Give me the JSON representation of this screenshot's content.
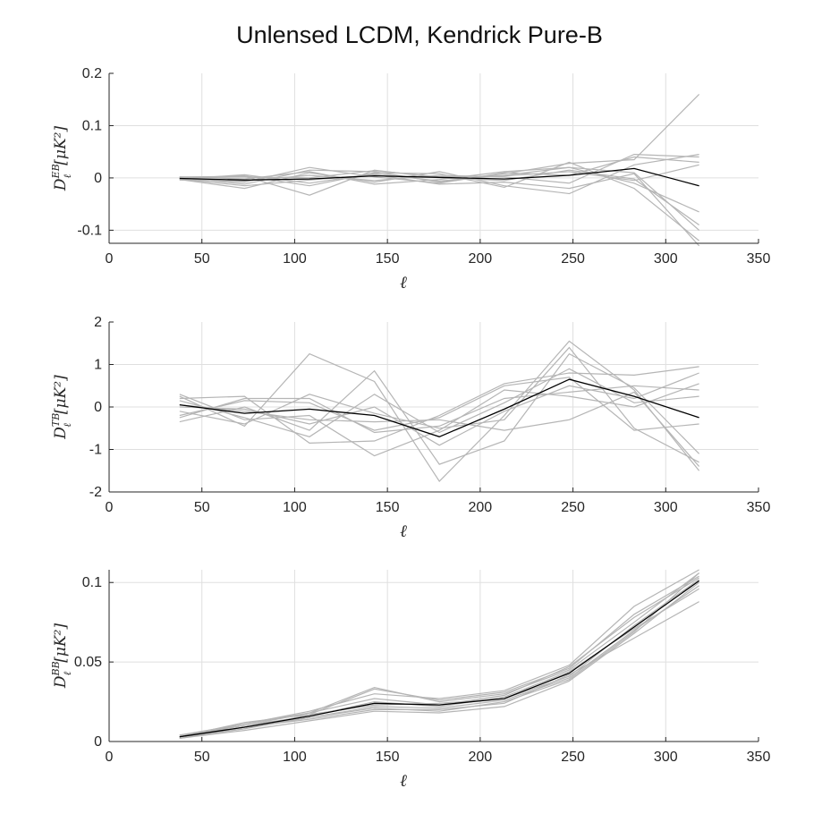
{
  "title": "Unlensed LCDM, Kendrick Pure-B",
  "colors": {
    "realizations": "#b5b5b5",
    "mean": "#000000",
    "grid": "#dfdfdf",
    "axes": "#262626"
  },
  "chart_data": [
    {
      "type": "line",
      "xlabel": "ℓ",
      "ylabel": {
        "base": "D",
        "sub": "ℓ",
        "sup": "EB",
        "unit": "[μK²]"
      },
      "xlim": [
        0,
        350
      ],
      "ylim": [
        -0.125,
        0.2
      ],
      "xticks": [
        0,
        50,
        100,
        150,
        200,
        250,
        300,
        350
      ],
      "yticks": [
        -0.1,
        0,
        0.1,
        0.2
      ],
      "ytick_labels": [
        "-0.1",
        "0",
        "0.1",
        "0.2"
      ],
      "grid": true,
      "x": [
        38,
        73,
        108,
        143,
        178,
        213,
        248,
        283,
        318
      ],
      "mean": [
        -0.001,
        -0.004,
        -0.002,
        0.004,
        0.001,
        -0.002,
        0.005,
        0.018,
        -0.015
      ],
      "realizations": [
        [
          -0.002,
          0.006,
          -0.01,
          0.008,
          -0.006,
          0.005,
          0.02,
          -0.01,
          -0.065
        ],
        [
          0.001,
          -0.012,
          0.015,
          0.012,
          -0.008,
          0.008,
          0.028,
          0.035,
          0.16
        ],
        [
          -0.003,
          -0.02,
          0.01,
          -0.008,
          0.012,
          -0.015,
          -0.03,
          0.025,
          0.045
        ],
        [
          0.002,
          0.003,
          -0.033,
          0.015,
          0.0,
          -0.005,
          0.015,
          -0.002,
          -0.09
        ],
        [
          -0.001,
          -0.008,
          0.02,
          0.002,
          -0.01,
          0.01,
          0.005,
          0.04,
          0.03
        ],
        [
          0.0,
          0.004,
          -0.015,
          0.01,
          0.008,
          -0.018,
          0.03,
          -0.02,
          -0.12
        ],
        [
          -0.004,
          -0.006,
          0.005,
          -0.005,
          0.005,
          0.002,
          -0.01,
          0.045,
          0.04
        ],
        [
          0.002,
          -0.002,
          0.012,
          -0.012,
          -0.003,
          0.012,
          0.02,
          0.01,
          -0.1
        ],
        [
          -0.002,
          -0.015,
          -0.004,
          0.006,
          -0.012,
          -0.008,
          -0.02,
          0.008,
          -0.13
        ],
        [
          0.001,
          0.002,
          0.0,
          0.014,
          0.002,
          0.004,
          0.012,
          -0.005,
          0.025
        ]
      ]
    },
    {
      "type": "line",
      "xlabel": "ℓ",
      "ylabel": {
        "base": "D",
        "sub": "ℓ",
        "sup": "TB",
        "unit": "[μK²]"
      },
      "xlim": [
        0,
        350
      ],
      "ylim": [
        -2,
        2
      ],
      "xticks": [
        0,
        50,
        100,
        150,
        200,
        250,
        300,
        350
      ],
      "yticks": [
        -2,
        -1,
        0,
        1,
        2
      ],
      "ytick_labels": [
        "-2",
        "-1",
        "0",
        "1",
        "2"
      ],
      "grid": true,
      "x": [
        38,
        73,
        108,
        143,
        178,
        213,
        248,
        283,
        318
      ],
      "mean": [
        0.05,
        -0.15,
        -0.05,
        -0.2,
        -0.7,
        -0.05,
        0.65,
        0.25,
        -0.25
      ],
      "realizations": [
        [
          0.25,
          -0.45,
          1.25,
          0.6,
          -1.75,
          -0.2,
          1.55,
          0.4,
          -1.5
        ],
        [
          -0.35,
          0.0,
          -0.55,
          0.85,
          -1.35,
          -0.8,
          1.25,
          0.45,
          -1.1
        ],
        [
          0.2,
          0.25,
          -0.85,
          -0.8,
          -0.2,
          0.55,
          0.8,
          0.75,
          0.95
        ],
        [
          -0.1,
          -0.4,
          0.3,
          -0.15,
          -0.5,
          -0.3,
          1.4,
          -0.5,
          -1.3
        ],
        [
          0.3,
          -0.3,
          -0.2,
          -1.15,
          -0.55,
          0.4,
          0.25,
          0.0,
          0.55
        ],
        [
          0.0,
          -0.05,
          -0.4,
          0.0,
          -0.9,
          -0.1,
          0.5,
          0.2,
          0.8
        ],
        [
          -0.2,
          0.15,
          0.1,
          -0.55,
          -0.25,
          0.5,
          0.7,
          -0.55,
          -0.4
        ],
        [
          0.15,
          -0.25,
          -0.7,
          0.3,
          -0.6,
          0.1,
          0.9,
          0.1,
          0.25
        ],
        [
          0.05,
          -0.1,
          -0.3,
          -0.35,
          -0.3,
          -0.55,
          -0.3,
          0.35,
          -1.4
        ],
        [
          -0.25,
          0.2,
          0.2,
          -0.6,
          -0.45,
          0.2,
          0.35,
          0.5,
          0.4
        ]
      ]
    },
    {
      "type": "line",
      "xlabel": "ℓ",
      "ylabel": {
        "base": "D",
        "sub": "ℓ",
        "sup": "BB",
        "unit": "[μK²]"
      },
      "xlim": [
        0,
        350
      ],
      "ylim": [
        0,
        0.108
      ],
      "xticks": [
        0,
        50,
        100,
        150,
        200,
        250,
        300,
        350
      ],
      "yticks": [
        0,
        0.05,
        0.1
      ],
      "ytick_labels": [
        "0",
        "0.05",
        "0.1"
      ],
      "grid": true,
      "x": [
        38,
        73,
        108,
        143,
        178,
        213,
        248,
        283,
        318
      ],
      "mean": [
        0.003,
        0.009,
        0.016,
        0.024,
        0.023,
        0.027,
        0.043,
        0.072,
        0.101
      ],
      "realizations": [
        [
          0.003,
          0.01,
          0.018,
          0.034,
          0.025,
          0.03,
          0.045,
          0.075,
          0.106
        ],
        [
          0.002,
          0.008,
          0.015,
          0.022,
          0.021,
          0.026,
          0.04,
          0.07,
          0.098
        ],
        [
          0.004,
          0.011,
          0.019,
          0.03,
          0.027,
          0.032,
          0.048,
          0.085,
          0.108
        ],
        [
          0.003,
          0.009,
          0.014,
          0.02,
          0.02,
          0.024,
          0.042,
          0.065,
          0.088
        ],
        [
          0.002,
          0.007,
          0.013,
          0.019,
          0.018,
          0.022,
          0.038,
          0.068,
          0.1
        ],
        [
          0.003,
          0.012,
          0.017,
          0.033,
          0.026,
          0.031,
          0.046,
          0.08,
          0.104
        ],
        [
          0.004,
          0.01,
          0.016,
          0.025,
          0.022,
          0.028,
          0.044,
          0.071,
          0.096
        ],
        [
          0.003,
          0.008,
          0.017,
          0.023,
          0.024,
          0.027,
          0.041,
          0.073,
          0.102
        ],
        [
          0.002,
          0.009,
          0.015,
          0.021,
          0.019,
          0.025,
          0.039,
          0.069,
          0.106
        ],
        [
          0.003,
          0.011,
          0.018,
          0.027,
          0.023,
          0.029,
          0.047,
          0.078,
          0.103
        ]
      ]
    }
  ]
}
